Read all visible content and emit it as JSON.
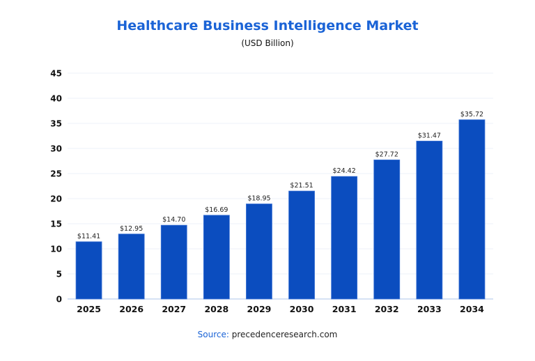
{
  "chart_data": {
    "type": "bar",
    "title": "Healthcare Business Intelligence Market",
    "subtitle": "(USD Billion)",
    "categories": [
      "2025",
      "2026",
      "2027",
      "2028",
      "2029",
      "2030",
      "2031",
      "2032",
      "2033",
      "2034"
    ],
    "values": [
      11.41,
      12.95,
      14.7,
      16.69,
      18.95,
      21.51,
      24.42,
      27.72,
      31.47,
      35.72
    ],
    "data_labels": [
      "$11.41",
      "$12.95",
      "$14.70",
      "$16.69",
      "$18.95",
      "$21.51",
      "$24.42",
      "$27.72",
      "$31.47",
      "$35.72"
    ],
    "ylim": [
      0,
      45
    ],
    "yticks": [
      0,
      5,
      10,
      15,
      20,
      25,
      30,
      35,
      40,
      45
    ],
    "xlabel": "",
    "ylabel": "",
    "grid": true,
    "bar_color": "#0b4dbf"
  },
  "source": {
    "label": "Source:",
    "text": "precedenceresearch.com"
  }
}
